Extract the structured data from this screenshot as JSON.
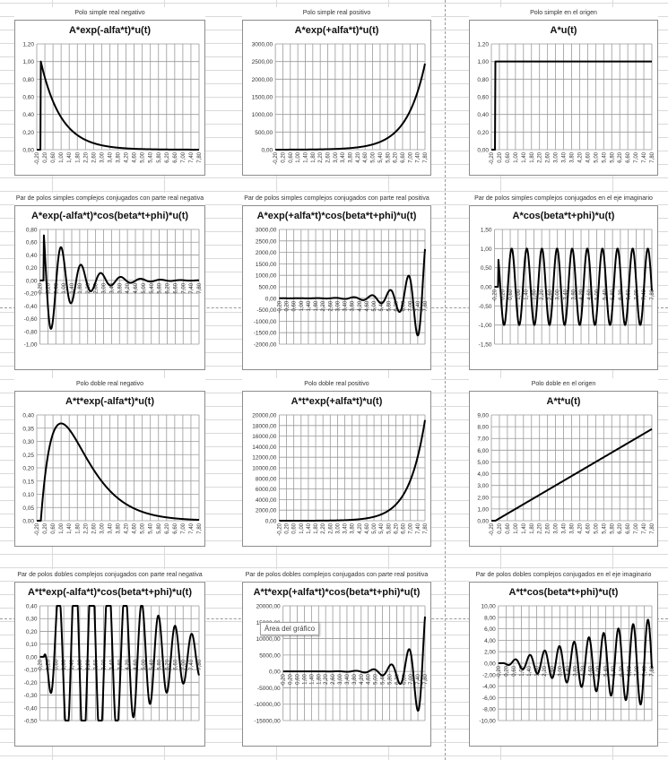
{
  "x_axis": {
    "tick_labels": [
      "-0,20",
      "0,20",
      "0,60",
      "1,00",
      "1,40",
      "1,80",
      "2,20",
      "2,60",
      "3,00",
      "3,40",
      "3,80",
      "4,20",
      "4,60",
      "5,00",
      "5,40",
      "5,80",
      "6,20",
      "6,60",
      "7,00",
      "7,40",
      "7,80"
    ],
    "range": [
      -0.2,
      7.8
    ]
  },
  "tooltip": {
    "text": "Área del gráfico"
  },
  "chart_data": [
    {
      "id": "c1",
      "type": "line",
      "caption": "Polo simple real negativo",
      "title": "A*exp(-alfa*t)*u(t)",
      "y_ticks": [
        "0,00",
        "0,20",
        "0,40",
        "0,60",
        "0,80",
        "1,00",
        "1,20"
      ],
      "ylim": [
        0,
        1.2
      ],
      "formula": "exp(-t)",
      "params": {
        "A": 1,
        "alfa": 1
      },
      "x": [
        -0.2,
        0,
        0.4,
        1,
        2,
        3,
        4,
        5,
        6,
        7,
        7.8
      ],
      "values": [
        0,
        1,
        0.67,
        0.37,
        0.14,
        0.05,
        0.02,
        0.01,
        0,
        0,
        0
      ]
    },
    {
      "id": "c2",
      "type": "line",
      "caption": "Polo simple real positivo",
      "title": "A*exp(+alfa*t)*u(t)",
      "y_ticks": [
        "0,00",
        "500,00",
        "1000,00",
        "1500,00",
        "2000,00",
        "2500,00",
        "3000,00"
      ],
      "ylim": [
        0,
        3000
      ],
      "formula": "exp(t)",
      "params": {
        "A": 1,
        "alfa": 1
      },
      "x": [
        -0.2,
        0,
        2,
        4,
        5,
        6,
        7,
        7.8
      ],
      "values": [
        0,
        1,
        7.4,
        54.6,
        148.4,
        403.4,
        1096.6,
        2440.6
      ]
    },
    {
      "id": "c3",
      "type": "line",
      "caption": "Polo simple en el origen",
      "title": "A*u(t)",
      "y_ticks": [
        "0,00",
        "0,20",
        "0,40",
        "0,60",
        "0,80",
        "1,00",
        "1,20"
      ],
      "ylim": [
        0,
        1.2
      ],
      "formula": "step",
      "params": {
        "A": 1
      },
      "x": [
        -0.2,
        0,
        7.8
      ],
      "values": [
        0,
        1,
        1
      ]
    },
    {
      "id": "c4",
      "type": "line",
      "caption": "Par de polos simples complejos conjugados con parte real negativa",
      "title": "A*exp(-alfa*t)*cos(beta*t+phi)*u(t)",
      "y_ticks": [
        "-1,00",
        "-0,80",
        "-0,60",
        "-0,40",
        "-0,20",
        "0,00",
        "0,20",
        "0,40",
        "0,60",
        "0,80"
      ],
      "ylim": [
        -1.0,
        0.8
      ],
      "formula": "damped_cos",
      "params": {
        "A": 1,
        "alfa": 0.75,
        "beta": 6.28,
        "phi": 0.785
      },
      "x": [
        -0.2,
        0,
        0.25,
        0.5,
        0.75,
        1.0,
        1.5,
        2.0,
        2.5
      ],
      "values": [
        0,
        0.71,
        -0.75,
        0.5,
        -0.34,
        0.22,
        0.1,
        0.05,
        0.02
      ]
    },
    {
      "id": "c5",
      "type": "line",
      "caption": "Par de polos simples complejos conjugados con parte real positiva",
      "title": "A*exp(+alfa*t)*cos(beta*t+phi)*u(t)",
      "y_ticks": [
        "-2000,00",
        "-1500,00",
        "-1000,00",
        "-500,00",
        "0,00",
        "500,00",
        "1000,00",
        "1500,00",
        "2000,00",
        "2500,00",
        "3000,00"
      ],
      "ylim": [
        -2000,
        3000
      ],
      "formula": "growing_cos",
      "params": {
        "A": 1,
        "alfa": 1,
        "beta": 6.28,
        "phi": 0.785
      },
      "x": [
        5.0,
        5.5,
        6.0,
        6.5,
        7.0,
        7.5,
        7.8
      ],
      "values": [
        105,
        -170,
        470,
        -730,
        1060,
        -1590,
        2330
      ]
    },
    {
      "id": "c6",
      "type": "line",
      "caption": "Par de polos simples complejos conjugados en el eje imaginario",
      "title": "A*cos(beta*t+phi)*u(t)",
      "y_ticks": [
        "-1,50",
        "-1,00",
        "-0,50",
        "0,00",
        "0,50",
        "1,00",
        "1,50"
      ],
      "ylim": [
        -1.5,
        1.5
      ],
      "formula": "cos",
      "params": {
        "A": 1,
        "beta": 8.17,
        "phi": 0.785
      },
      "x": [
        -0.2,
        0,
        7.8
      ],
      "values": [
        0,
        0.71,
        0.95
      ]
    },
    {
      "id": "c7",
      "type": "line",
      "caption": "Polo doble real negativo",
      "title": "A*t*exp(-alfa*t)*u(t)",
      "y_ticks": [
        "0,00",
        "0,05",
        "0,10",
        "0,15",
        "0,20",
        "0,25",
        "0,30",
        "0,35",
        "0,40"
      ],
      "ylim": [
        0,
        0.4
      ],
      "formula": "t_exp_neg",
      "params": {
        "A": 1,
        "alfa": 1
      },
      "x": [
        -0.2,
        0,
        0.2,
        0.6,
        1.0,
        2.0,
        3.0,
        4.0,
        5.0,
        6.0,
        7.8
      ],
      "values": [
        0,
        0,
        0.16,
        0.33,
        0.37,
        0.27,
        0.15,
        0.07,
        0.03,
        0.01,
        0
      ]
    },
    {
      "id": "c8",
      "type": "line",
      "caption": "Polo doble real positivo",
      "title": "A*t*exp(+alfa*t)*u(t)",
      "y_ticks": [
        "0,00",
        "2000,00",
        "4000,00",
        "6000,00",
        "8000,00",
        "10000,00",
        "12000,00",
        "14000,00",
        "16000,00",
        "18000,00",
        "20000,00"
      ],
      "ylim": [
        0,
        20000
      ],
      "formula": "t_exp_pos",
      "params": {
        "A": 1,
        "alfa": 1
      },
      "x": [
        -0.2,
        0,
        4,
        5,
        6,
        7,
        7.8
      ],
      "values": [
        0,
        0,
        218,
        742,
        2420,
        7676,
        19037
      ]
    },
    {
      "id": "c9",
      "type": "line",
      "caption": "Polo doble en el origen",
      "title": "A*t*u(t)",
      "y_ticks": [
        "0,00",
        "1,00",
        "2,00",
        "3,00",
        "4,00",
        "5,00",
        "6,00",
        "7,00",
        "8,00",
        "9,00"
      ],
      "ylim": [
        0,
        9
      ],
      "formula": "ramp",
      "params": {
        "A": 1
      },
      "x": [
        -0.2,
        0,
        7.8
      ],
      "values": [
        0,
        0,
        7.8
      ]
    },
    {
      "id": "c10",
      "type": "line",
      "caption": "Par de polos dobles complejos conjugados con parte real negativa",
      "title": "A*t*exp(-alfa*t)*cos(beta*t+phi)*u(t)",
      "y_ticks": [
        "-0,50",
        "-0,40",
        "-0,30",
        "-0,20",
        "-0,10",
        "0,00",
        "0,10",
        "0,20",
        "0,30",
        "0,40"
      ],
      "ylim": [
        -0.5,
        0.4
      ],
      "formula": "t_damped_cos",
      "params": {
        "A": 1,
        "alfa": 0.5,
        "beta": 7.5,
        "phi": 0.785
      },
      "x": [
        0.4,
        0.6,
        0.8,
        1.0,
        1.2,
        1.4,
        1.6,
        2.0
      ],
      "values": [
        -0.23,
        0.34,
        -0.36,
        0.33,
        -0.29,
        0.23,
        -0.19,
        0.15
      ]
    },
    {
      "id": "c11",
      "type": "line",
      "caption": "Par de polos dobles complejos conjugados con parte real positiva",
      "title": "A*t*exp(+alfa*t)*cos(beta*t+phi)*u(t)",
      "y_ticks": [
        "-15000,00",
        "-10000,00",
        "-5000,00",
        "0,00",
        "5000,00",
        "10000,00",
        "15000,00",
        "20000,00"
      ],
      "ylim": [
        -15000,
        20000
      ],
      "formula": "t_growing_cos",
      "params": {
        "A": 1,
        "alfa": 1,
        "beta": 6.28,
        "phi": 0.785
      },
      "x": [
        6.2,
        6.5,
        7.0,
        7.3,
        7.8
      ],
      "values": [
        2800,
        -4700,
        7300,
        -11800,
        18200
      ]
    },
    {
      "id": "c12",
      "type": "line",
      "caption": "Par de polos dobles complejos conjugados en el eje imaginario",
      "title": "A*t*cos(beta*t+phi)*u(t)",
      "y_ticks": [
        "-10,00",
        "-8,00",
        "-6,00",
        "-4,00",
        "-2,00",
        "0,00",
        "2,00",
        "4,00",
        "6,00",
        "8,00",
        "10,00"
      ],
      "ylim": [
        -10,
        10
      ],
      "formula": "t_cos",
      "params": {
        "A": 1,
        "beta": 8.17,
        "phi": 0.785
      },
      "x": [
        0.6,
        1.4,
        2.2,
        3.0,
        3.8,
        4.6,
        5.4,
        6.2,
        7.0,
        7.8
      ],
      "values": [
        0.7,
        1.5,
        2.2,
        3.0,
        3.8,
        4.5,
        5.3,
        6.1,
        6.8,
        7.6
      ]
    }
  ]
}
